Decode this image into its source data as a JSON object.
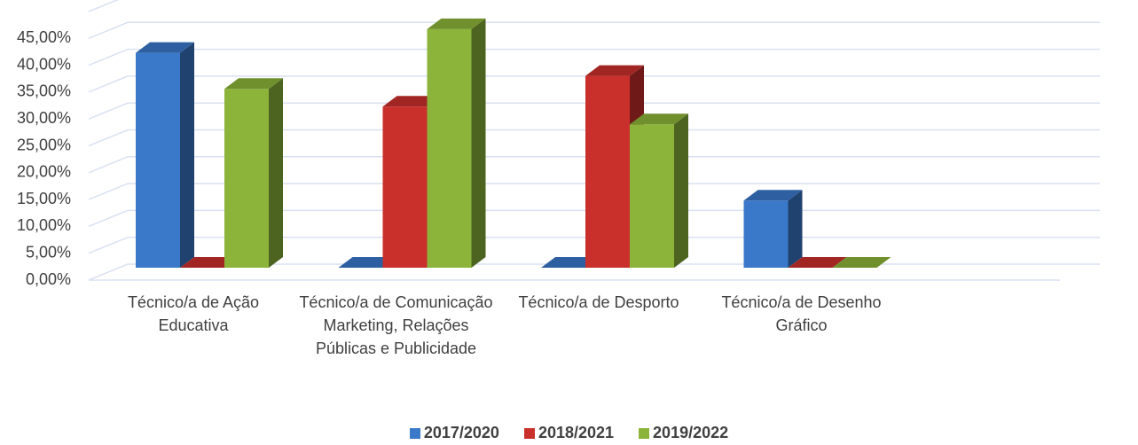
{
  "chart_data": {
    "type": "bar3d",
    "categories": [
      "Técnico/a de Ação Educativa",
      "Técnico/a de Comunicação Marketing, Relações Públicas e Publicidade",
      "Técnico/a de Desporto",
      "Técnico/a de Desenho Gráfico"
    ],
    "series": [
      {
        "name": "2017/2020",
        "color": "#3a78c9",
        "values": [
          40.0,
          0,
          0,
          12.5
        ]
      },
      {
        "name": "2018/2021",
        "color": "#c9302c",
        "values": [
          0,
          30.0,
          35.7,
          0
        ]
      },
      {
        "name": "2019/2022",
        "color": "#8cb43a",
        "values": [
          33.3,
          44.4,
          26.7,
          0
        ]
      }
    ],
    "ylim": [
      0,
      50
    ],
    "yticks": [
      {
        "value": 0,
        "label": "0,00%"
      },
      {
        "value": 5,
        "label": "5,00%"
      },
      {
        "value": 10,
        "label": "10,00%"
      },
      {
        "value": 15,
        "label": "15,00%"
      },
      {
        "value": 20,
        "label": "20,00%"
      },
      {
        "value": 25,
        "label": "25,00%"
      },
      {
        "value": 30,
        "label": "30,00%"
      },
      {
        "value": 35,
        "label": "35,00%"
      },
      {
        "value": 40,
        "label": "40,00%"
      },
      {
        "value": 45,
        "label": "45,00%"
      }
    ],
    "grid": true,
    "legend": "bottom"
  }
}
